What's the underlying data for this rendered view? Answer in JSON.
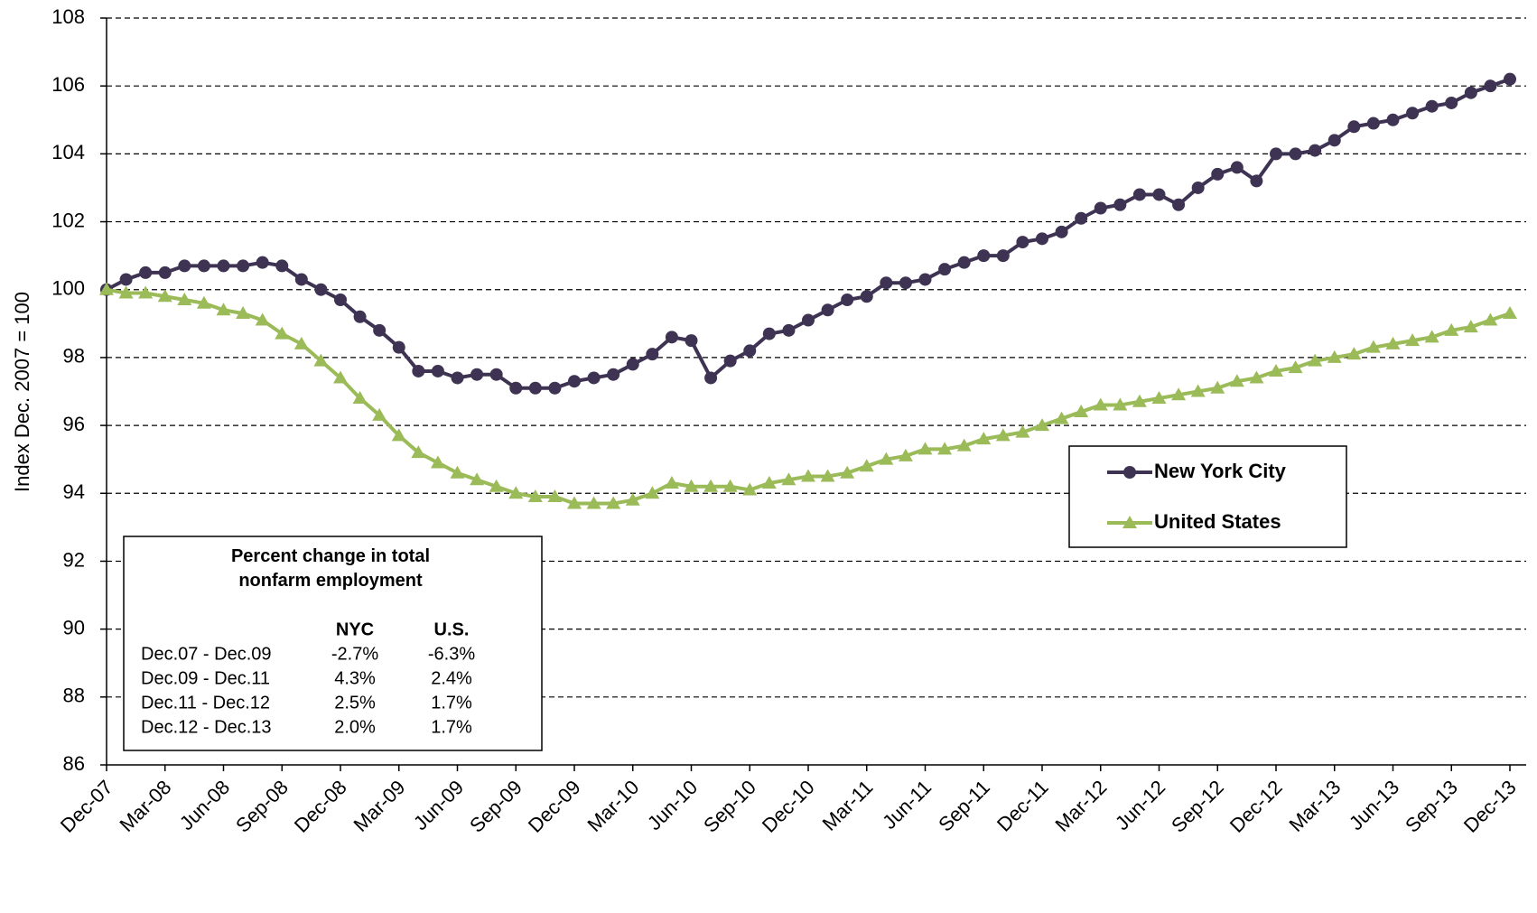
{
  "chart_data": {
    "type": "line",
    "y_label": "Index Dec. 2007 = 100",
    "categories": [
      "Dec-07",
      null,
      null,
      "Mar-08",
      null,
      null,
      "Jun-08",
      null,
      null,
      "Sep-08",
      null,
      null,
      "Dec-08",
      null,
      null,
      "Mar-09",
      null,
      null,
      "Jun-09",
      null,
      null,
      "Sep-09",
      null,
      null,
      "Dec-09",
      null,
      null,
      "Mar-10",
      null,
      null,
      "Jun-10",
      null,
      null,
      "Sep-10",
      null,
      null,
      "Dec-10",
      null,
      null,
      "Mar-11",
      null,
      null,
      "Jun-11",
      null,
      null,
      "Sep-11",
      null,
      null,
      "Dec-11",
      null,
      null,
      "Mar-12",
      null,
      null,
      "Jun-12",
      null,
      null,
      "Sep-12",
      null,
      null,
      "Dec-12",
      null,
      null,
      "Mar-13",
      null,
      null,
      "Jun-13",
      null,
      null,
      "Sep-13",
      null,
      null,
      "Dec-13"
    ],
    "series": [
      {
        "name": "New York City",
        "color": "#3f3353",
        "marker": "circle",
        "values": [
          100.0,
          100.3,
          100.5,
          100.5,
          100.7,
          100.7,
          100.7,
          100.7,
          100.8,
          100.7,
          100.3,
          100.0,
          99.7,
          99.2,
          98.8,
          98.3,
          97.6,
          97.6,
          97.4,
          97.5,
          97.5,
          97.1,
          97.1,
          97.1,
          97.3,
          97.4,
          97.5,
          97.8,
          98.1,
          98.6,
          98.5,
          97.4,
          97.9,
          98.2,
          98.7,
          98.8,
          99.1,
          99.4,
          99.7,
          99.8,
          100.2,
          100.2,
          100.3,
          100.6,
          100.8,
          101.0,
          101.0,
          101.4,
          101.5,
          101.7,
          102.1,
          102.4,
          102.5,
          102.8,
          102.8,
          102.5,
          103.0,
          103.4,
          103.6,
          103.2,
          104.0,
          104.0,
          104.1,
          104.4,
          104.8,
          104.9,
          105.0,
          105.2,
          105.4,
          105.5,
          105.8,
          106.0,
          106.2
        ]
      },
      {
        "name": "United States",
        "color": "#9bbb59",
        "marker": "triangle",
        "values": [
          100.0,
          99.9,
          99.9,
          99.8,
          99.7,
          99.6,
          99.4,
          99.3,
          99.1,
          98.7,
          98.4,
          97.9,
          97.4,
          96.8,
          96.3,
          95.7,
          95.2,
          94.9,
          94.6,
          94.4,
          94.2,
          94.0,
          93.9,
          93.9,
          93.7,
          93.7,
          93.7,
          93.8,
          94.0,
          94.3,
          94.2,
          94.2,
          94.2,
          94.1,
          94.3,
          94.4,
          94.5,
          94.5,
          94.6,
          94.8,
          95.0,
          95.1,
          95.3,
          95.3,
          95.4,
          95.6,
          95.7,
          95.8,
          96.0,
          96.2,
          96.4,
          96.6,
          96.6,
          96.7,
          96.8,
          96.9,
          97.0,
          97.1,
          97.3,
          97.4,
          97.6,
          97.7,
          97.9,
          98.0,
          98.1,
          98.3,
          98.4,
          98.5,
          98.6,
          98.8,
          98.9,
          99.1,
          99.3
        ]
      }
    ],
    "ylim": [
      86,
      108
    ],
    "yticks": [
      86,
      88,
      90,
      92,
      94,
      96,
      98,
      100,
      102,
      104,
      106,
      108
    ],
    "grid": true,
    "legend_position": "right",
    "table": {
      "title": "Percent change in total nonfarm employment",
      "columns": [
        "NYC",
        "U.S."
      ],
      "rows": [
        {
          "label": "Dec.07 - Dec.09",
          "values": [
            "-2.7%",
            "-6.3%"
          ]
        },
        {
          "label": "Dec.09 - Dec.11",
          "values": [
            "4.3%",
            "2.4%"
          ]
        },
        {
          "label": "Dec.11 - Dec.12",
          "values": [
            "2.5%",
            "1.7%"
          ]
        },
        {
          "label": "Dec.12 - Dec.13",
          "values": [
            "2.0%",
            "1.7%"
          ]
        }
      ]
    }
  }
}
